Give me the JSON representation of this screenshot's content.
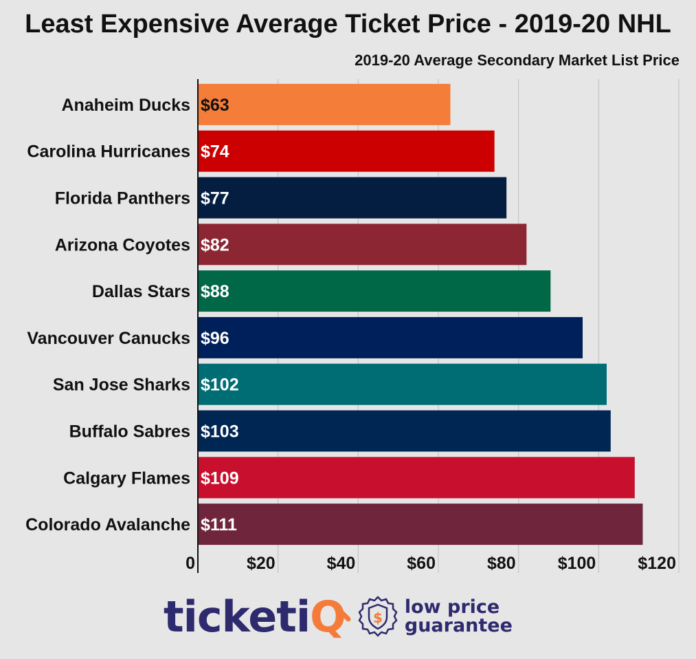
{
  "chart_data": {
    "type": "bar",
    "orientation": "horizontal",
    "title": "Least Expensive Average Ticket Price - 2019-20 NHL",
    "subtitle": "2019-20 Average Secondary Market List Price",
    "categories": [
      "Anaheim Ducks",
      "Carolina Hurricanes",
      "Florida Panthers",
      "Arizona Coyotes",
      "Dallas Stars",
      "Vancouver Canucks",
      "San Jose Sharks",
      "Buffalo Sabres",
      "Calgary Flames",
      "Colorado Avalanche"
    ],
    "values": [
      63,
      74,
      77,
      82,
      88,
      96,
      102,
      103,
      109,
      111
    ],
    "value_labels": [
      "$63",
      "$74",
      "$77",
      "$82",
      "$88",
      "$96",
      "$102",
      "$103",
      "$109",
      "$111"
    ],
    "bar_colors": [
      "#f47d3a",
      "#cc0000",
      "#041e42",
      "#8c2633",
      "#006847",
      "#00205b",
      "#006d75",
      "#002654",
      "#c8102e",
      "#6f263d"
    ],
    "label_colors": [
      "#111111",
      "#ffffff",
      "#ffffff",
      "#ffffff",
      "#ffffff",
      "#ffffff",
      "#ffffff",
      "#ffffff",
      "#ffffff",
      "#ffffff"
    ],
    "xlim": [
      0,
      120
    ],
    "x_ticks": [
      0,
      20,
      40,
      60,
      80,
      100,
      120
    ],
    "x_tick_labels": [
      "0",
      "$20",
      "$40",
      "$60",
      "$80",
      "$100",
      "$120"
    ],
    "grid": true
  },
  "logo": {
    "brand_main": "ticketi",
    "brand_accent": "Q",
    "tagline_line1": "low price",
    "tagline_line2": "guarantee",
    "badge_symbol": "$",
    "brand_color": "#2e2a6e",
    "accent_color": "#f47b3a"
  }
}
